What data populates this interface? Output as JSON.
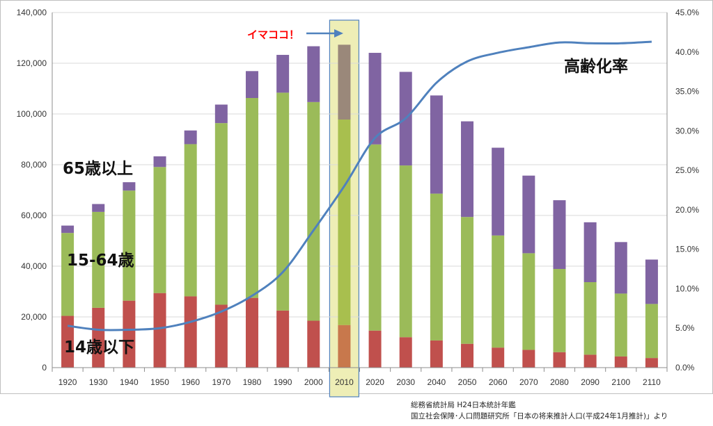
{
  "chart_data": {
    "type": "bar",
    "stacked": true,
    "categories": [
      "1920",
      "1930",
      "1940",
      "1950",
      "1960",
      "1970",
      "1980",
      "1990",
      "2000",
      "2010",
      "2020",
      "2030",
      "2040",
      "2050",
      "2060",
      "2070",
      "2080",
      "2090",
      "2100",
      "2110"
    ],
    "series": [
      {
        "name": "14歳以下",
        "color": "#c0504d",
        "highlight_color": "#c8784c",
        "values": [
          20400,
          23600,
          26400,
          29400,
          28100,
          24800,
          27500,
          22500,
          18500,
          16800,
          14600,
          12000,
          10700,
          9400,
          7900,
          7000,
          6100,
          5100,
          4400,
          3800
        ]
      },
      {
        "name": "15-64歳",
        "color": "#9bbb59",
        "highlight_color": "#a8bf4e",
        "values": [
          32700,
          37800,
          43400,
          49700,
          60000,
          71600,
          78800,
          85900,
          86200,
          81000,
          73400,
          67700,
          57900,
          50000,
          44200,
          38100,
          32800,
          28600,
          24800,
          21300
        ]
      },
      {
        "name": "65歳以上",
        "color": "#8064a2",
        "highlight_color": "#9a887a",
        "values": [
          2900,
          3100,
          3300,
          4200,
          5400,
          7300,
          10600,
          14900,
          22000,
          29500,
          36100,
          36900,
          38700,
          37700,
          34600,
          30600,
          27100,
          23600,
          20300,
          17500
        ]
      }
    ],
    "line_series": {
      "name": "高齢化率",
      "color": "#4f81bd",
      "axis": "right",
      "values": [
        5.3,
        4.8,
        4.8,
        5.0,
        5.8,
        7.1,
        9.1,
        12.1,
        17.4,
        23.0,
        29.1,
        31.6,
        36.1,
        38.8,
        39.9,
        40.6,
        41.2,
        41.1,
        41.1,
        41.3
      ]
    },
    "y_left": {
      "min": 0,
      "max": 140000,
      "step": 20000,
      "ticks": [
        "0",
        "20,000",
        "40,000",
        "60,000",
        "80,000",
        "100,000",
        "120,000",
        "140,000"
      ]
    },
    "y_right": {
      "min": 0,
      "max": 45,
      "step": 5,
      "ticks": [
        "0.0%",
        "5.0%",
        "10.0%",
        "15.0%",
        "20.0%",
        "25.0%",
        "30.0%",
        "35.0%",
        "40.0%",
        "45.0%"
      ]
    },
    "grid": true,
    "highlight": {
      "category": "2010",
      "fill": "#eeeeb6",
      "stroke": "#4f81bd"
    },
    "annotations": {
      "now_label": "イマココ！",
      "label_65_plus": "65歳以上",
      "label_15_64": "15-64歳",
      "label_under_14": "14歳以下",
      "label_aging_rate": "高齢化率"
    }
  },
  "source": {
    "line1": "総務省統計局  H24日本統計年鑑",
    "line2": "国立社会保障･人口問題研究所「日本の将来推計人口(平成24年1月推計)」より"
  }
}
